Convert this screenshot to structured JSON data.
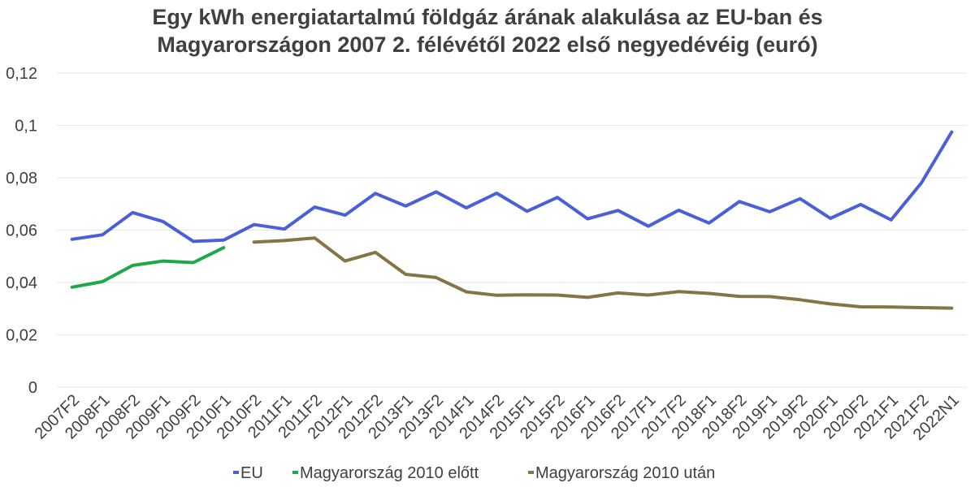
{
  "chart_data": {
    "type": "line",
    "title_lines": [
      "Egy kWh energiatartalmú földgáz árának alakulása az EU-ban és",
      "Magyarországon 2007 2. félévétől 2022 első negyedévéig (euró)"
    ],
    "xlabel": "",
    "ylabel": "",
    "categories": [
      "2007F2",
      "2008F1",
      "2008F2",
      "2009F1",
      "2009F2",
      "2010F1",
      "2010F2",
      "2011F1",
      "2011F2",
      "2012F1",
      "2012F2",
      "2013F1",
      "2013F2",
      "2014F1",
      "2014F2",
      "2015F1",
      "2015F2",
      "2016F1",
      "2016F2",
      "2017F1",
      "2017F2",
      "2018F1",
      "2018F2",
      "2019F1",
      "2019F2",
      "2020F1",
      "2020F2",
      "2021F1",
      "2021F2",
      "2022N1"
    ],
    "ylim": [
      0,
      0.12
    ],
    "yticks": [
      "0",
      "0,02",
      "0,04",
      "0,06",
      "0,08",
      "0,1",
      "0,12"
    ],
    "ytick_values": [
      0,
      0.02,
      0.04,
      0.06,
      0.08,
      0.1,
      0.12
    ],
    "grid": true,
    "legend_position": "bottom",
    "series": [
      {
        "name": "EU",
        "color": "#4A5FD8",
        "values": [
          0.0565,
          0.0582,
          0.0667,
          0.0633,
          0.0557,
          0.0562,
          0.0621,
          0.0604,
          0.0688,
          0.0657,
          0.074,
          0.0692,
          0.0746,
          0.0685,
          0.0741,
          0.0672,
          0.0725,
          0.0643,
          0.0675,
          0.0615,
          0.0676,
          0.0627,
          0.0709,
          0.067,
          0.072,
          0.0645,
          0.0698,
          0.0639,
          0.078,
          0.0975
        ]
      },
      {
        "name": "Magyarország 2010 előtt",
        "color": "#1EA84A",
        "values": [
          0.0382,
          0.0403,
          0.0465,
          0.0482,
          0.0476,
          0.0533,
          null,
          null,
          null,
          null,
          null,
          null,
          null,
          null,
          null,
          null,
          null,
          null,
          null,
          null,
          null,
          null,
          null,
          null,
          null,
          null,
          null,
          null,
          null,
          null
        ]
      },
      {
        "name": "Magyarország 2010 után",
        "color": "#857545",
        "values": [
          null,
          null,
          null,
          null,
          null,
          null,
          0.0554,
          0.056,
          0.057,
          0.0482,
          0.0515,
          0.0431,
          0.0419,
          0.0364,
          0.0351,
          0.0353,
          0.0352,
          0.0343,
          0.036,
          0.0352,
          0.0365,
          0.0358,
          0.0347,
          0.0346,
          0.0334,
          0.0318,
          0.0307,
          0.0306,
          0.0304,
          0.0302
        ]
      }
    ]
  }
}
